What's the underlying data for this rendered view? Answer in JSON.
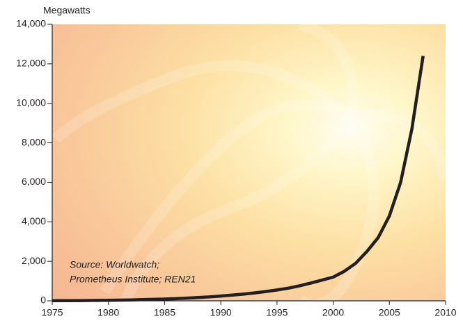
{
  "chart_data": {
    "type": "line",
    "y_axis_label": "Megawatts",
    "annotation": [
      "Source: Worldwatch;",
      "Prometheus Institute; REN21"
    ],
    "x": [
      1975,
      1976,
      1977,
      1978,
      1979,
      1980,
      1981,
      1982,
      1983,
      1984,
      1985,
      1986,
      1987,
      1988,
      1989,
      1990,
      1991,
      1992,
      1993,
      1994,
      1995,
      1996,
      1997,
      1998,
      1999,
      2000,
      2001,
      2002,
      2003,
      2004,
      2005,
      2006,
      2007,
      2008
    ],
    "series": [
      {
        "name": "Megawatts",
        "color": "#231f20",
        "values": [
          5,
          7,
          10,
          15,
          20,
          25,
          35,
          45,
          60,
          75,
          90,
          110,
          135,
          165,
          200,
          240,
          290,
          340,
          400,
          470,
          550,
          640,
          760,
          900,
          1050,
          1200,
          1500,
          1900,
          2500,
          3200,
          4300,
          6000,
          8700,
          12400
        ]
      }
    ],
    "xlim": [
      1975,
      2010
    ],
    "xticks": [
      1975,
      1980,
      1985,
      1990,
      1995,
      2000,
      2005,
      2010
    ],
    "ylim": [
      0,
      14000
    ],
    "yticks": [
      0,
      {
        "value": 2000,
        "label": "2,000"
      },
      {
        "value": 4000,
        "label": "4,000"
      },
      {
        "value": 6000,
        "label": "6,000"
      },
      {
        "value": 8000,
        "label": "8,000"
      },
      {
        "value": 10000,
        "label": "10,000"
      },
      {
        "value": 12000,
        "label": "12,000"
      },
      {
        "value": 14000,
        "label": "14,000"
      }
    ]
  }
}
